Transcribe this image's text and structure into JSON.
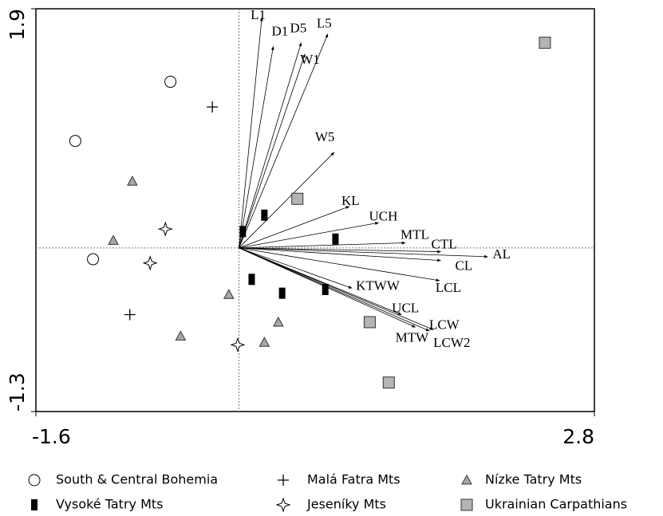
{
  "chart_data": {
    "type": "scatter",
    "xlim": [
      -1.6,
      2.8
    ],
    "ylim": [
      -1.3,
      1.9
    ],
    "xticks": [
      -1.6,
      2.8
    ],
    "yticks": [
      -1.3,
      1.9
    ],
    "series": [
      {
        "name": "South & Central Bohemia",
        "marker": "circle",
        "color": "#ffffff",
        "x": [
          -0.54,
          -1.29,
          -1.15
        ],
        "y": [
          1.32,
          0.85,
          -0.09
        ]
      },
      {
        "name": "Malá Fatra Mts",
        "marker": "plus",
        "color": "#000000",
        "x": [
          -0.21,
          -0.86
        ],
        "y": [
          1.12,
          -0.53
        ]
      },
      {
        "name": "Nízke Tatry Mts",
        "marker": "triangle",
        "color": "#a8a8a8",
        "x": [
          -0.84,
          -0.99,
          -0.08,
          -0.46,
          0.31,
          0.2
        ],
        "y": [
          0.53,
          0.06,
          -0.37,
          -0.7,
          -0.59,
          -0.75
        ]
      },
      {
        "name": "Vysoké Tatry Mts",
        "marker": "bar",
        "color": "#000000",
        "x": [
          0.03,
          0.2,
          0.76,
          0.1,
          0.34,
          0.68
        ],
        "y": [
          0.13,
          0.26,
          0.07,
          -0.25,
          -0.36,
          -0.33
        ]
      },
      {
        "name": "Jeseníky Mts",
        "marker": "star",
        "color": "#ffffff",
        "x": [
          -0.58,
          -0.7,
          -0.01
        ],
        "y": [
          0.15,
          -0.12,
          -0.77
        ]
      },
      {
        "name": "Ukrainian Carpathians",
        "marker": "square",
        "color": "#b4b4b4",
        "x": [
          2.41,
          0.46,
          1.03,
          1.18
        ],
        "y": [
          1.63,
          0.39,
          -0.59,
          -1.07
        ]
      }
    ],
    "vectors": {
      "labels": [
        "L1",
        "D1",
        "D5",
        "L5",
        "W1",
        "W5",
        "KL",
        "UCH",
        "MTL",
        "CTL",
        "AL",
        "CL",
        "LCL",
        "KTWW",
        "UCL",
        "LCW",
        "LCW2",
        "MTW"
      ],
      "x": [
        0.18,
        0.27,
        0.49,
        0.7,
        0.52,
        0.75,
        0.87,
        1.1,
        1.31,
        1.59,
        1.96,
        1.59,
        1.58,
        0.89,
        1.28,
        1.53,
        1.5,
        1.39
      ],
      "y": [
        1.83,
        1.6,
        1.63,
        1.7,
        1.54,
        0.76,
        0.33,
        0.2,
        0.04,
        -0.03,
        -0.07,
        -0.1,
        -0.26,
        -0.32,
        -0.53,
        -0.65,
        -0.66,
        -0.63
      ]
    }
  }
}
